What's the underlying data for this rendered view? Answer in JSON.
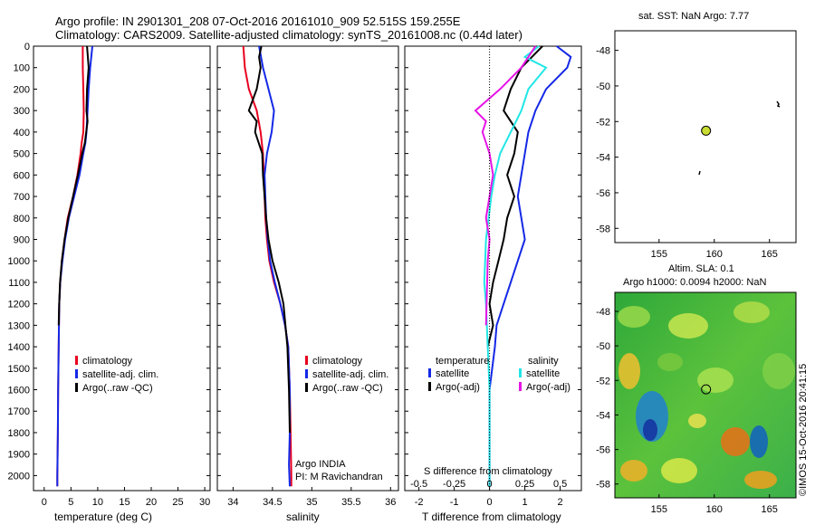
{
  "header": {
    "line1": "Argo profile: IN 2901301_208 07-Oct-2016 20161010_909 52.515S 159.255E",
    "line2": "Climatology: CARS2009. Satellite-adjusted climatology: synTS_20161008.nc (0.44d later)"
  },
  "colors": {
    "climatology": "#e8001e",
    "satellite": "#1428e6",
    "argo": "#000000",
    "sat_cyan": "#22e6e6",
    "argo_magenta": "#e614e6"
  },
  "depth_ticks": [
    "0",
    "100",
    "200",
    "300",
    "400",
    "500",
    "600",
    "700",
    "800",
    "900",
    "1000",
    "1100",
    "1200",
    "1300",
    "1400",
    "1500",
    "1600",
    "1700",
    "1800",
    "1900",
    "2000"
  ],
  "temp_panel": {
    "xlabel": "temperature (deg C)",
    "xticks": [
      "0",
      "5",
      "10",
      "15",
      "20",
      "25",
      "30"
    ],
    "legend": [
      "climatology",
      "satellite-adj. clim.",
      "Argo(..raw -QC)"
    ]
  },
  "sal_panel": {
    "xlabel": "salinity",
    "xticks": [
      "34",
      "34.5",
      "35",
      "35.5",
      "36"
    ],
    "legend": [
      "climatology",
      "satellite-adj. clim.",
      "Argo(..raw -QC)"
    ],
    "note1": "Argo INDIA",
    "note2": "PI: M Ravichandran"
  },
  "diff_panel": {
    "xlabel": "T difference from climatology",
    "s_label": "S difference from climatology",
    "t_ticks": [
      "-2",
      "-1",
      "0",
      "1",
      "2"
    ],
    "s_ticks": [
      "-0.5",
      "-0.25",
      "0",
      "0.25",
      "0.5"
    ],
    "leg_temp_title": "temperature",
    "leg_sal_title": "salinity",
    "leg_items": [
      "satellite",
      "Argo(-adj)",
      "satellite",
      "Argo(-adj)"
    ]
  },
  "map_top": {
    "title": "sat. SST: NaN Argo: 7.77",
    "yticks": [
      "-48",
      "-50",
      "-52",
      "-54",
      "-56",
      "-58"
    ],
    "xticks": [
      "155",
      "160",
      "165"
    ]
  },
  "map_bottom": {
    "title1": "Altim. SLA: 0.1",
    "title2": "Argo h1000: 0.0094 h2000: NaN",
    "yticks": [
      "-48",
      "-50",
      "-52",
      "-54",
      "-56",
      "-58"
    ],
    "xticks": [
      "155",
      "160",
      "165"
    ],
    "stamp": "©IMOS 15-Oct-2016 20:41:15"
  },
  "chart_data": [
    {
      "type": "line",
      "xlabel": "temperature (deg C)",
      "ylabel": "",
      "xlim": [
        -2,
        31
      ],
      "ylim": [
        0,
        2070
      ],
      "y_reversed": true,
      "series": [
        {
          "name": "climatology",
          "x": [
            7.2,
            7.2,
            7.3,
            7.4,
            7.3,
            7.0,
            6.8,
            6.2,
            5.4,
            4.4,
            3.8,
            3.3,
            3.0,
            2.8,
            2.7,
            2.6,
            2.55,
            2.5,
            2.45,
            2.45
          ],
          "y": [
            0,
            100,
            200,
            300,
            400,
            450,
            500,
            600,
            700,
            800,
            900,
            1000,
            1100,
            1200,
            1400,
            1600,
            1800,
            1900,
            2000,
            2050
          ]
        },
        {
          "name": "satellite-adj. clim.",
          "x": [
            9.0,
            8.6,
            8.3,
            8.1,
            7.9,
            7.7,
            7.3,
            6.6,
            5.6,
            4.6,
            3.9,
            3.4,
            3.0,
            2.8,
            2.7,
            2.6,
            2.55,
            2.5,
            2.45,
            2.45
          ],
          "y": [
            0,
            100,
            200,
            300,
            400,
            450,
            500,
            600,
            700,
            800,
            900,
            1000,
            1100,
            1200,
            1400,
            1600,
            1800,
            1900,
            2000,
            2050
          ]
        },
        {
          "name": "Argo(..raw -QC)",
          "x": [
            8.0,
            8.3,
            8.0,
            7.9,
            8.1,
            7.6,
            7.1,
            6.3,
            5.4,
            4.5,
            3.8,
            3.3,
            2.95,
            2.8,
            2.7
          ],
          "y": [
            0,
            100,
            200,
            300,
            350,
            450,
            500,
            600,
            700,
            800,
            900,
            1000,
            1100,
            1200,
            1300
          ]
        }
      ]
    },
    {
      "type": "line",
      "xlabel": "salinity",
      "ylabel": "",
      "xlim": [
        33.8,
        36.1
      ],
      "ylim": [
        0,
        2070
      ],
      "y_reversed": true,
      "series": [
        {
          "name": "climatology",
          "x": [
            34.13,
            34.15,
            34.2,
            34.3,
            34.35,
            34.38,
            34.39,
            34.4,
            34.41,
            34.43,
            34.46,
            34.52,
            34.6,
            34.66,
            34.7,
            34.72,
            34.73,
            34.74,
            34.74
          ],
          "y": [
            0,
            100,
            200,
            300,
            400,
            500,
            600,
            700,
            800,
            900,
            1000,
            1100,
            1200,
            1300,
            1400,
            1600,
            1800,
            2000,
            2050
          ]
        },
        {
          "name": "satellite-adj. clim.",
          "x": [
            34.33,
            34.38,
            34.45,
            34.52,
            34.49,
            34.43,
            34.4,
            34.41,
            34.42,
            34.44,
            34.47,
            34.53,
            34.6,
            34.66,
            34.7,
            34.72,
            34.72,
            34.71,
            34.72
          ],
          "y": [
            0,
            100,
            200,
            300,
            400,
            500,
            600,
            700,
            800,
            900,
            1000,
            1100,
            1200,
            1300,
            1400,
            1600,
            1800,
            1950,
            2050
          ]
        },
        {
          "name": "Argo(..raw -QC)",
          "x": [
            34.36,
            34.33,
            34.35,
            34.3,
            34.2,
            34.3,
            34.28,
            34.37,
            34.38,
            34.4,
            34.42,
            34.45,
            34.5,
            34.58,
            34.64,
            34.69,
            34.71,
            34.72
          ],
          "y": [
            0,
            50,
            100,
            200,
            300,
            350,
            400,
            500,
            600,
            700,
            800,
            900,
            1000,
            1100,
            1200,
            1400,
            1600,
            1800
          ]
        }
      ]
    },
    {
      "type": "line",
      "xlabel": "T difference from climatology",
      "ylabel": "",
      "xlim": [
        -2.4,
        2.6
      ],
      "ylim": [
        0,
        2070
      ],
      "y_reversed": true,
      "series": [
        {
          "name": "satellite",
          "group": "temperature",
          "x": [
            1.9,
            2.3,
            2.2,
            1.6,
            1.3,
            1.1,
            1.0,
            0.9,
            0.8,
            0.9,
            1.0,
            0.8,
            0.6,
            0.4,
            0.2,
            0.15,
            0.0,
            0.0
          ],
          "y": [
            0,
            50,
            100,
            200,
            300,
            400,
            500,
            600,
            700,
            800,
            900,
            1000,
            1100,
            1200,
            1300,
            1400,
            1600,
            2050
          ]
        },
        {
          "name": "Argo(-adj)",
          "group": "temperature",
          "x": [
            1.5,
            1.2,
            0.9,
            0.6,
            0.4,
            0.8,
            0.7,
            0.5,
            0.7,
            0.5,
            0.4,
            0.25,
            0.1,
            0.0,
            0.1,
            -0.05
          ],
          "y": [
            0,
            50,
            100,
            200,
            300,
            400,
            500,
            600,
            700,
            800,
            900,
            1000,
            1100,
            1200,
            1300,
            1400
          ]
        },
        {
          "name": "satellite",
          "group": "salinity",
          "x": [
            1.4,
            1.0,
            1.6,
            1.1,
            0.9,
            0.6,
            0.3,
            0.15,
            0.05,
            -0.1,
            -0.15,
            -0.1,
            -0.05,
            0.0,
            0.0,
            0.0
          ],
          "y": [
            0,
            50,
            100,
            200,
            300,
            400,
            500,
            600,
            700,
            900,
            1100,
            1200,
            1400,
            1600,
            1800,
            2050
          ]
        },
        {
          "name": "Argo(-adj)",
          "group": "salinity",
          "x": [
            1.3,
            1.1,
            0.9,
            0.3,
            -0.4,
            -0.1,
            -0.2,
            0.0,
            0.1,
            0.0,
            -0.1,
            0.0,
            -0.05,
            -0.1
          ],
          "y": [
            0,
            50,
            100,
            200,
            300,
            350,
            400,
            500,
            600,
            700,
            800,
            900,
            1000,
            1300
          ]
        }
      ]
    }
  ]
}
